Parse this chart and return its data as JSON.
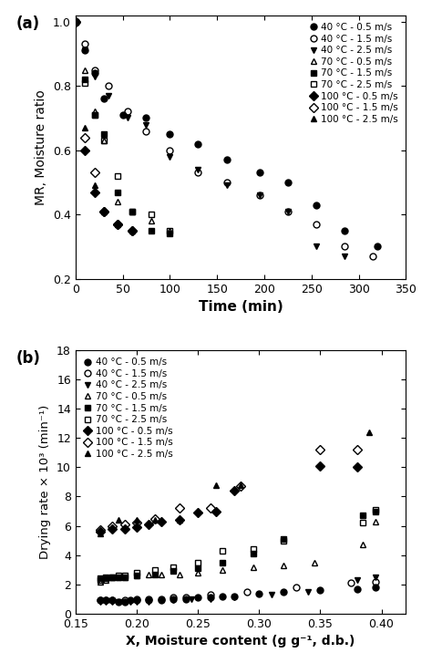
{
  "panel_a": {
    "title": "(a)",
    "xlabel": "Time (min)",
    "ylabel": "MR, Moisture ratio",
    "xlim": [
      0,
      350
    ],
    "ylim": [
      0.2,
      1.02
    ],
    "xticks": [
      0,
      50,
      100,
      150,
      200,
      250,
      300,
      350
    ],
    "yticks": [
      0.2,
      0.4,
      0.6,
      0.8,
      1.0
    ],
    "series": [
      {
        "label": "40 °C - 0.5 m/s",
        "marker": "o",
        "fillstyle": "full",
        "x": [
          0,
          10,
          20,
          30,
          50,
          75,
          100,
          130,
          160,
          195,
          225,
          255,
          285,
          320
        ],
        "y": [
          1.0,
          0.91,
          0.84,
          0.76,
          0.71,
          0.7,
          0.65,
          0.62,
          0.57,
          0.53,
          0.5,
          0.43,
          0.35,
          0.3
        ]
      },
      {
        "label": "40 °C - 1.5 m/s",
        "marker": "o",
        "fillstyle": "none",
        "x": [
          0,
          10,
          20,
          35,
          55,
          75,
          100,
          130,
          160,
          195,
          225,
          255,
          285,
          315
        ],
        "y": [
          1.0,
          0.93,
          0.85,
          0.8,
          0.72,
          0.66,
          0.6,
          0.53,
          0.5,
          0.46,
          0.41,
          0.37,
          0.3,
          0.27
        ]
      },
      {
        "label": "40 °C - 2.5 m/s",
        "marker": "v",
        "fillstyle": "full",
        "x": [
          0,
          10,
          20,
          35,
          55,
          75,
          100,
          130,
          160,
          195,
          225,
          255,
          285
        ],
        "y": [
          1.0,
          0.91,
          0.83,
          0.77,
          0.7,
          0.68,
          0.58,
          0.54,
          0.49,
          0.46,
          0.41,
          0.3,
          0.27
        ]
      },
      {
        "label": "70 °C - 0.5 m/s",
        "marker": "^",
        "fillstyle": "none",
        "x": [
          0,
          10,
          20,
          30,
          45,
          60,
          80,
          100
        ],
        "y": [
          1.0,
          0.85,
          0.72,
          0.63,
          0.44,
          0.41,
          0.38,
          0.35
        ]
      },
      {
        "label": "70 °C - 1.5 m/s",
        "marker": "s",
        "fillstyle": "full",
        "x": [
          0,
          10,
          20,
          30,
          45,
          60,
          80,
          100
        ],
        "y": [
          1.0,
          0.82,
          0.71,
          0.65,
          0.47,
          0.41,
          0.35,
          0.34
        ]
      },
      {
        "label": "70 °C - 2.5 m/s",
        "marker": "s",
        "fillstyle": "none",
        "x": [
          0,
          10,
          20,
          30,
          45,
          60,
          80,
          100
        ],
        "y": [
          1.0,
          0.81,
          0.71,
          0.63,
          0.52,
          0.41,
          0.4,
          0.35
        ]
      },
      {
        "label": "100 °C - 0.5 m/s",
        "marker": "D",
        "fillstyle": "full",
        "x": [
          0,
          10,
          20,
          30,
          45,
          60
        ],
        "y": [
          1.0,
          0.6,
          0.47,
          0.41,
          0.37,
          0.35
        ]
      },
      {
        "label": "100 °C - 1.5 m/s",
        "marker": "D",
        "fillstyle": "none",
        "x": [
          0,
          10,
          20,
          30,
          45,
          60
        ],
        "y": [
          1.0,
          0.64,
          0.53,
          0.41,
          0.37,
          0.35
        ]
      },
      {
        "label": "100 °C - 2.5 m/s",
        "marker": "^",
        "fillstyle": "full",
        "x": [
          0,
          10,
          20,
          30,
          45,
          60
        ],
        "y": [
          1.0,
          0.67,
          0.49,
          0.41,
          0.37,
          0.35
        ]
      }
    ]
  },
  "panel_b": {
    "title": "(b)",
    "xlabel": "X, Moisture content (g g⁻¹, d.b.)",
    "ylabel": "Drying rate × 10³ (min⁻¹)",
    "xlim": [
      0.15,
      0.42
    ],
    "ylim": [
      0,
      18
    ],
    "xticks": [
      0.15,
      0.2,
      0.25,
      0.3,
      0.35,
      0.4
    ],
    "yticks": [
      0,
      2,
      4,
      6,
      8,
      10,
      12,
      14,
      16,
      18
    ],
    "series": [
      {
        "label": "40 °C - 0.5 m/s",
        "marker": "o",
        "fillstyle": "full",
        "x": [
          0.17,
          0.175,
          0.18,
          0.185,
          0.19,
          0.195,
          0.2,
          0.21,
          0.22,
          0.23,
          0.24,
          0.25,
          0.26,
          0.27,
          0.28,
          0.3,
          0.32,
          0.35,
          0.38,
          0.395
        ],
        "y": [
          0.9,
          0.9,
          0.9,
          0.8,
          0.8,
          0.9,
          0.9,
          0.9,
          0.9,
          1.0,
          1.0,
          1.1,
          1.1,
          1.2,
          1.2,
          1.35,
          1.5,
          1.6,
          1.7,
          1.8
        ]
      },
      {
        "label": "40 °C - 1.5 m/s",
        "marker": "o",
        "fillstyle": "none",
        "x": [
          0.17,
          0.175,
          0.18,
          0.19,
          0.2,
          0.21,
          0.22,
          0.23,
          0.24,
          0.26,
          0.29,
          0.33,
          0.375,
          0.395
        ],
        "y": [
          0.9,
          0.9,
          0.9,
          0.9,
          1.0,
          1.0,
          1.0,
          1.1,
          1.1,
          1.3,
          1.5,
          1.8,
          2.1,
          2.2
        ]
      },
      {
        "label": "40 °C - 2.5 m/s",
        "marker": "v",
        "fillstyle": "full",
        "x": [
          0.17,
          0.175,
          0.18,
          0.185,
          0.19,
          0.195,
          0.2,
          0.21,
          0.22,
          0.23,
          0.245,
          0.26,
          0.28,
          0.31,
          0.34,
          0.38,
          0.395
        ],
        "y": [
          0.8,
          0.8,
          0.8,
          0.8,
          0.8,
          0.8,
          0.8,
          0.8,
          0.9,
          0.9,
          1.0,
          1.0,
          1.1,
          1.3,
          1.5,
          2.3,
          2.5
        ]
      },
      {
        "label": "70 °C - 0.5 m/s",
        "marker": "^",
        "fillstyle": "none",
        "x": [
          0.17,
          0.175,
          0.18,
          0.185,
          0.19,
          0.2,
          0.21,
          0.22,
          0.235,
          0.25,
          0.27,
          0.295,
          0.32,
          0.345,
          0.385,
          0.395
        ],
        "y": [
          2.2,
          2.3,
          2.5,
          2.5,
          2.5,
          2.6,
          2.7,
          2.7,
          2.7,
          2.8,
          3.0,
          3.2,
          3.3,
          3.5,
          4.7,
          6.3
        ]
      },
      {
        "label": "70 °C - 1.5 m/s",
        "marker": "s",
        "fillstyle": "full",
        "x": [
          0.17,
          0.175,
          0.18,
          0.185,
          0.19,
          0.2,
          0.215,
          0.23,
          0.25,
          0.27,
          0.295,
          0.32,
          0.385,
          0.395
        ],
        "y": [
          2.4,
          2.5,
          2.5,
          2.5,
          2.5,
          2.6,
          2.7,
          2.9,
          3.1,
          3.5,
          4.1,
          5.1,
          6.7,
          7.0
        ]
      },
      {
        "label": "70 °C - 2.5 m/s",
        "marker": "s",
        "fillstyle": "none",
        "x": [
          0.17,
          0.175,
          0.18,
          0.185,
          0.19,
          0.2,
          0.215,
          0.23,
          0.25,
          0.27,
          0.295,
          0.32,
          0.385,
          0.395
        ],
        "y": [
          2.3,
          2.4,
          2.5,
          2.6,
          2.6,
          2.8,
          3.0,
          3.2,
          3.5,
          4.3,
          4.4,
          5.0,
          6.2,
          7.1
        ]
      },
      {
        "label": "100 °C - 0.5 m/s",
        "marker": "D",
        "fillstyle": "full",
        "x": [
          0.17,
          0.18,
          0.19,
          0.2,
          0.21,
          0.22,
          0.235,
          0.25,
          0.265,
          0.28,
          0.35,
          0.38
        ],
        "y": [
          5.6,
          5.8,
          5.8,
          5.9,
          6.1,
          6.3,
          6.4,
          6.9,
          7.0,
          8.4,
          10.1,
          10.0
        ]
      },
      {
        "label": "100 °C - 1.5 m/s",
        "marker": "D",
        "fillstyle": "none",
        "x": [
          0.17,
          0.18,
          0.19,
          0.2,
          0.215,
          0.235,
          0.26,
          0.285,
          0.35,
          0.38
        ],
        "y": [
          5.7,
          6.0,
          6.1,
          6.2,
          6.5,
          7.2,
          7.2,
          8.7,
          11.2,
          11.2
        ]
      },
      {
        "label": "100 °C - 2.5 m/s",
        "marker": "^",
        "fillstyle": "full",
        "x": [
          0.17,
          0.185,
          0.2,
          0.215,
          0.235,
          0.265,
          0.285,
          0.39
        ],
        "y": [
          5.5,
          6.4,
          6.4,
          6.4,
          6.4,
          8.8,
          8.8,
          12.4
        ]
      }
    ]
  }
}
